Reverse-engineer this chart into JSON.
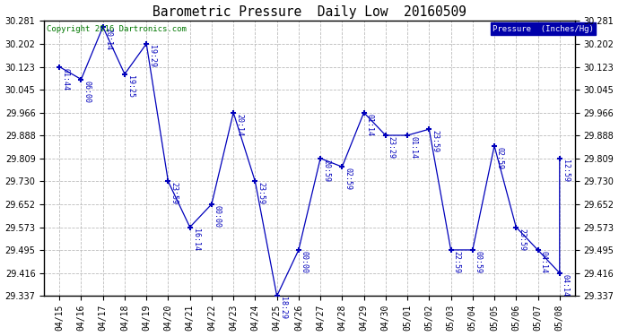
{
  "title": "Barometric Pressure  Daily Low  20160509",
  "legend_label": "Pressure  (Inches/Hg)",
  "copyright": "Copyright 2016 Dartronics.com",
  "background_color": "#ffffff",
  "line_color": "#0000bb",
  "annotation_color": "#0000bb",
  "grid_color": "#bbbbbb",
  "ylim_min": 29.337,
  "ylim_max": 30.281,
  "yticks": [
    29.337,
    29.416,
    29.495,
    29.573,
    29.652,
    29.73,
    29.809,
    29.888,
    29.966,
    30.045,
    30.123,
    30.202,
    30.281
  ],
  "x_labels": [
    "04/15",
    "04/16",
    "04/17",
    "04/18",
    "04/19",
    "04/20",
    "04/21",
    "04/22",
    "04/23",
    "04/24",
    "04/25",
    "04/26",
    "04/27",
    "04/28",
    "04/29",
    "04/30",
    "05/01",
    "05/02",
    "05/03",
    "05/04",
    "05/05",
    "05/06",
    "05/07",
    "05/08"
  ],
  "x_indices": [
    0,
    1,
    2,
    3,
    4,
    5,
    6,
    7,
    8,
    9,
    10,
    11,
    12,
    13,
    14,
    15,
    16,
    17,
    18,
    19,
    20,
    21,
    22,
    23,
    23
  ],
  "y_values": [
    30.123,
    30.08,
    30.26,
    30.098,
    30.202,
    29.73,
    29.573,
    29.652,
    29.966,
    29.73,
    29.337,
    29.495,
    29.809,
    29.78,
    29.966,
    29.888,
    29.888,
    29.909,
    29.495,
    29.495,
    29.852,
    29.573,
    29.495,
    29.416,
    29.809
  ],
  "point_labels": [
    "01:44",
    "06:00",
    "20:14",
    "19:25",
    "19:29",
    "23:59",
    "16:14",
    "00:00",
    "20:14",
    "23:59",
    "18:29",
    "00:00",
    "20:59",
    "02:59",
    "01:14",
    "23:29",
    "01:14",
    "23:59",
    "22:59",
    "00:59",
    "02:59",
    "23:59",
    "04:14",
    "04:14",
    "12:59"
  ]
}
